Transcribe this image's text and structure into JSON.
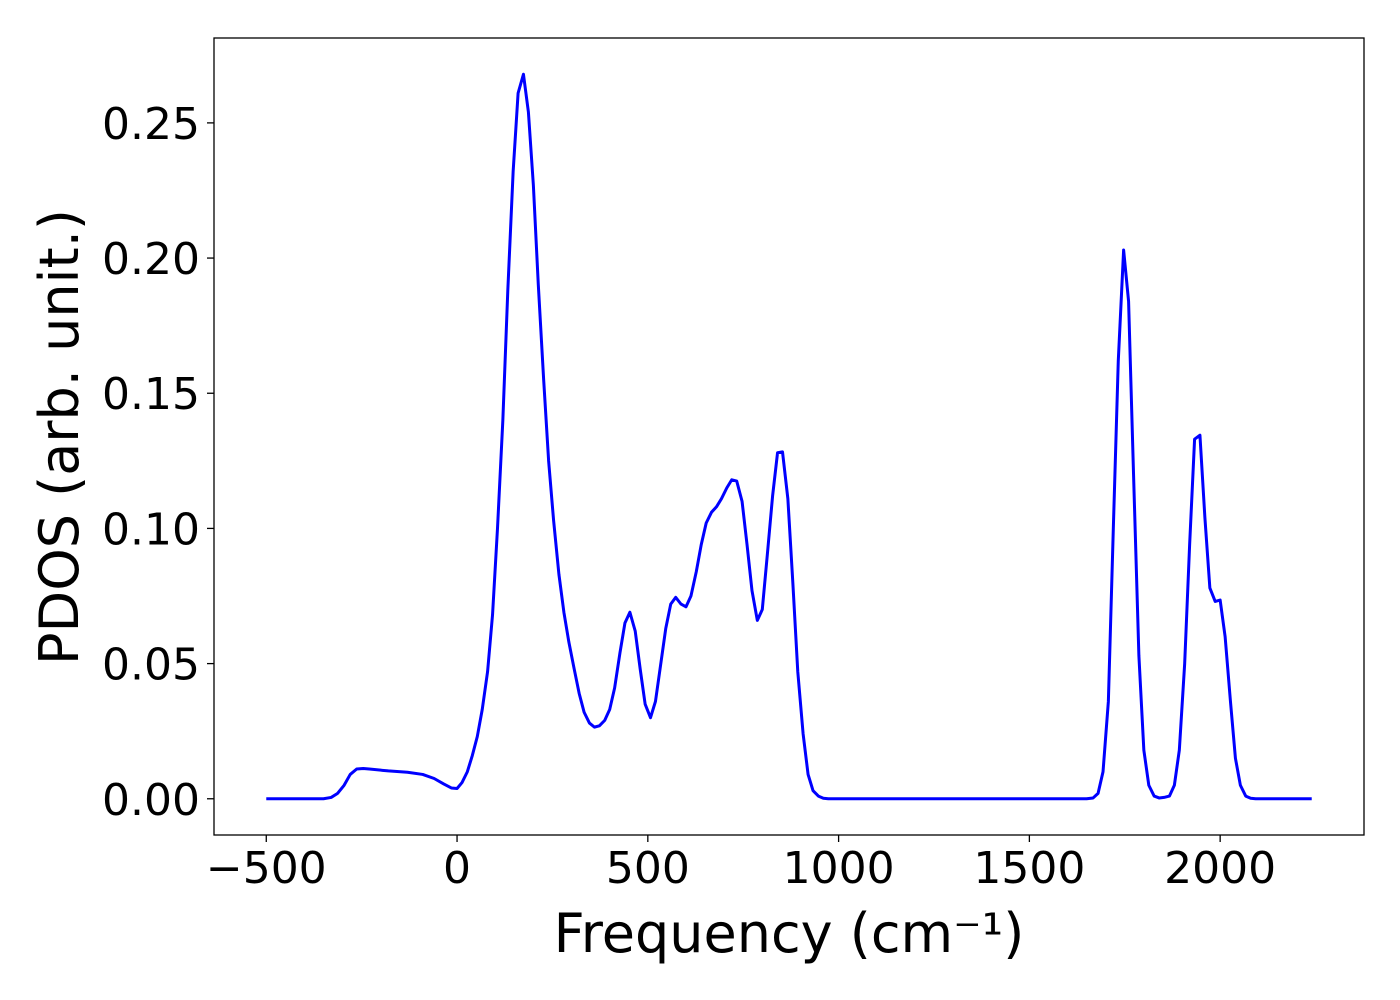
{
  "chart_data": {
    "type": "line",
    "xlabel": "Frequency (cm⁻¹)",
    "ylabel": "PDOS (arb. unit.)",
    "color": "#0000ff",
    "x": [
      -500,
      -350,
      -330,
      -313,
      -296,
      -280,
      -263,
      -246,
      -230,
      -180,
      -130,
      -90,
      -60,
      -35,
      -15,
      0,
      13,
      27,
      40,
      53,
      66,
      80,
      93,
      106,
      120,
      133,
      147,
      160,
      174,
      187,
      200,
      213,
      227,
      240,
      253,
      267,
      280,
      293,
      307,
      320,
      333,
      347,
      360,
      373,
      387,
      400,
      413,
      427,
      440,
      453,
      467,
      480,
      493,
      507,
      520,
      533,
      547,
      560,
      573,
      587,
      600,
      613,
      627,
      640,
      653,
      667,
      680,
      693,
      707,
      720,
      733,
      747,
      760,
      773,
      787,
      800,
      813,
      827,
      840,
      853,
      867,
      880,
      893,
      907,
      920,
      933,
      947,
      960,
      973,
      1650,
      1667,
      1680,
      1693,
      1707,
      1720,
      1733,
      1747,
      1760,
      1773,
      1787,
      1800,
      1813,
      1827,
      1840,
      1853,
      1867,
      1880,
      1893,
      1907,
      1920,
      1933,
      1947,
      1960,
      1973,
      1987,
      2000,
      2013,
      2027,
      2040,
      2053,
      2067,
      2080,
      2093,
      2240
    ],
    "values": [
      0,
      0,
      0.0005,
      0.002,
      0.005,
      0.009,
      0.011,
      0.0112,
      0.011,
      0.0103,
      0.0098,
      0.009,
      0.0075,
      0.0055,
      0.004,
      0.0038,
      0.006,
      0.01,
      0.016,
      0.023,
      0.033,
      0.047,
      0.068,
      0.1,
      0.14,
      0.188,
      0.232,
      0.261,
      0.268,
      0.254,
      0.227,
      0.19,
      0.155,
      0.125,
      0.103,
      0.083,
      0.069,
      0.058,
      0.048,
      0.039,
      0.032,
      0.028,
      0.0265,
      0.027,
      0.029,
      0.033,
      0.041,
      0.054,
      0.065,
      0.069,
      0.062,
      0.048,
      0.035,
      0.03,
      0.036,
      0.049,
      0.063,
      0.072,
      0.0745,
      0.072,
      0.071,
      0.075,
      0.084,
      0.094,
      0.102,
      0.106,
      0.108,
      0.111,
      0.115,
      0.118,
      0.1175,
      0.11,
      0.094,
      0.077,
      0.066,
      0.07,
      0.09,
      0.112,
      0.128,
      0.1283,
      0.111,
      0.08,
      0.047,
      0.024,
      0.009,
      0.003,
      0.001,
      0.0002,
      0,
      0,
      0.0003,
      0.002,
      0.01,
      0.036,
      0.1,
      0.162,
      0.203,
      0.184,
      0.12,
      0.053,
      0.018,
      0.005,
      0.001,
      0.0003,
      0.0005,
      0.001,
      0.005,
      0.018,
      0.05,
      0.094,
      0.133,
      0.1345,
      0.104,
      0.078,
      0.073,
      0.0735,
      0.06,
      0.036,
      0.015,
      0.005,
      0.001,
      0.0002,
      0,
      0
    ],
    "xlim": [
      -637,
      2377
    ],
    "ylim": [
      -0.0134,
      0.2814
    ],
    "xticks": [
      {
        "value": -500,
        "label": "−500"
      },
      0,
      500,
      1000,
      1500,
      2000
    ],
    "yticks": [
      {
        "value": 0,
        "label": "0.00"
      },
      {
        "value": 0.05,
        "label": "0.05"
      },
      {
        "value": 0.1,
        "label": "0.10"
      },
      {
        "value": 0.15,
        "label": "0.15"
      },
      {
        "value": 0.2,
        "label": "0.20"
      },
      {
        "value": 0.25,
        "label": "0.25"
      }
    ]
  }
}
